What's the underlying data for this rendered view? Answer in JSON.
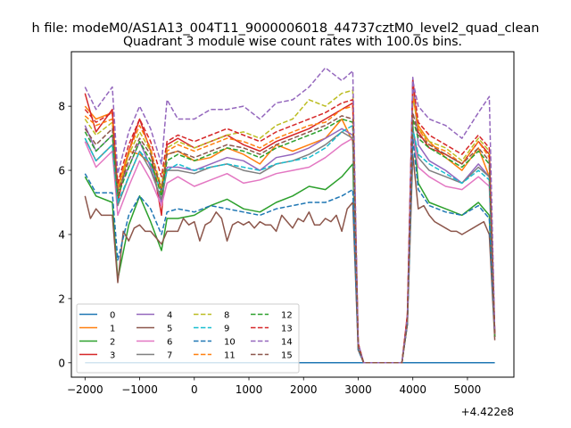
{
  "suptitle": "h file: modeM0/AS1A13_004T11_9000006018_44737cztM0_level2_quad_clean",
  "chart_data": {
    "type": "line",
    "title": "Quadrant 3 module wise count rates with 100.0s bins.",
    "xlabel": "",
    "ylabel": "",
    "x_offset_label": "+4.422e8",
    "xlim": [
      -2250,
      5850
    ],
    "ylim": [
      -0.45,
      9.7
    ],
    "xticks": [
      -2000,
      -1000,
      0,
      1000,
      2000,
      3000,
      4000,
      5000
    ],
    "xtick_labels": [
      "−2000",
      "−1000",
      "0",
      "1000",
      "2000",
      "3000",
      "4000",
      "5000"
    ],
    "yticks": [
      0,
      2,
      4,
      6,
      8
    ],
    "ytick_labels": [
      "0",
      "2",
      "4",
      "6",
      "8"
    ],
    "grid": false,
    "legend_position": "lower-left",
    "legend_columns": 4,
    "palette": [
      "#1f77b4",
      "#ff7f0e",
      "#2ca02c",
      "#d62728",
      "#9467bd",
      "#8c564b",
      "#e377c2",
      "#7f7f7f",
      "#bcbd22",
      "#17becf",
      "#1f77b4",
      "#ff7f0e",
      "#2ca02c",
      "#d62728",
      "#9467bd",
      "#8c564b"
    ],
    "series": [
      {
        "name": "0",
        "style": "solid",
        "x": [
          -2000,
          5500
        ],
        "y": [
          0,
          0
        ]
      },
      {
        "name": "1",
        "style": "solid",
        "x": [
          -2000,
          -1800,
          -1500,
          -1400,
          -1200,
          -1000,
          -800,
          -600,
          -500,
          -300,
          0,
          300,
          600,
          900,
          1200,
          1500,
          1800,
          2100,
          2400,
          2700,
          2900,
          3000,
          3100,
          3200,
          3800,
          3900,
          4000,
          4100,
          4300,
          4600,
          4900,
          5200,
          5400,
          5500
        ],
        "y": [
          8.0,
          7.6,
          7.8,
          5.5,
          6.6,
          6.5,
          6.2,
          5.5,
          6.5,
          6.6,
          6.3,
          6.4,
          6.7,
          6.5,
          6.2,
          6.8,
          6.6,
          6.8,
          7.0,
          7.6,
          6.9,
          0.5,
          0.0,
          0.0,
          0.0,
          1.2,
          8.3,
          7.4,
          6.9,
          6.4,
          6.0,
          6.7,
          5.8,
          0.8
        ]
      },
      {
        "name": "2",
        "style": "solid",
        "x": [
          -2000,
          -1800,
          -1500,
          -1400,
          -1200,
          -1000,
          -800,
          -600,
          -500,
          -300,
          0,
          300,
          600,
          900,
          1200,
          1500,
          1800,
          2100,
          2400,
          2700,
          2900,
          3000,
          3100,
          3200,
          3800,
          3900,
          4000,
          4100,
          4300,
          4600,
          4900,
          5200,
          5400,
          5500
        ],
        "y": [
          5.8,
          5.2,
          5.0,
          2.6,
          4.3,
          5.2,
          4.4,
          3.5,
          4.5,
          4.5,
          4.6,
          4.9,
          5.1,
          4.8,
          4.7,
          5.0,
          5.2,
          5.5,
          5.4,
          5.8,
          6.2,
          0.5,
          0.0,
          0.0,
          0.0,
          1.3,
          7.4,
          5.6,
          5.0,
          4.8,
          4.6,
          5.0,
          4.6,
          0.9
        ]
      },
      {
        "name": "3",
        "style": "solid",
        "x": [
          -2000,
          -1800,
          -1500,
          -1400,
          -1200,
          -1000,
          -800,
          -600,
          -500,
          -300,
          0,
          300,
          600,
          900,
          1200,
          1500,
          1800,
          2100,
          2400,
          2700,
          2900,
          3000,
          3100,
          3200,
          3800,
          3900,
          4000,
          4100,
          4300,
          4600,
          4900,
          5200,
          5400,
          5500
        ],
        "y": [
          8.4,
          7.2,
          7.9,
          5.0,
          6.6,
          7.6,
          6.6,
          4.6,
          6.8,
          7.0,
          6.7,
          6.9,
          7.1,
          6.8,
          6.6,
          6.9,
          7.1,
          7.3,
          7.6,
          7.9,
          8.1,
          0.6,
          0.0,
          0.0,
          0.0,
          1.5,
          8.8,
          7.2,
          6.7,
          6.5,
          6.2,
          6.9,
          6.5,
          0.9
        ]
      },
      {
        "name": "4",
        "style": "solid",
        "x": [
          -2000,
          -1800,
          -1500,
          -1400,
          -1200,
          -1000,
          -800,
          -600,
          -500,
          -300,
          0,
          300,
          600,
          900,
          1200,
          1500,
          1800,
          2100,
          2400,
          2700,
          2900,
          3000,
          3100,
          3200,
          3800,
          3900,
          4000,
          4100,
          4300,
          4600,
          4900,
          5200,
          5400,
          5500
        ],
        "y": [
          7.4,
          6.6,
          7.1,
          5.4,
          6.1,
          6.9,
          6.1,
          5.0,
          6.1,
          6.1,
          6.0,
          6.2,
          6.4,
          6.3,
          6.0,
          6.4,
          6.5,
          6.7,
          7.0,
          7.3,
          7.1,
          0.5,
          0.0,
          0.0,
          0.0,
          1.4,
          8.9,
          6.8,
          6.3,
          6.0,
          5.6,
          6.2,
          5.8,
          0.8
        ]
      },
      {
        "name": "5",
        "style": "solid",
        "x": [
          -2000,
          -1900,
          -1800,
          -1700,
          -1600,
          -1500,
          -1400,
          -1300,
          -1200,
          -1100,
          -1000,
          -900,
          -800,
          -700,
          -600,
          -500,
          -400,
          -300,
          -200,
          -100,
          0,
          100,
          200,
          300,
          400,
          500,
          600,
          700,
          800,
          900,
          1000,
          1100,
          1200,
          1300,
          1400,
          1500,
          1600,
          1700,
          1800,
          1900,
          2000,
          2100,
          2200,
          2300,
          2400,
          2500,
          2600,
          2700,
          2800,
          2900,
          3000,
          3100,
          3200,
          3800,
          3900,
          4000,
          4100,
          4200,
          4300,
          4400,
          4500,
          4600,
          4700,
          4800,
          4900,
          5000,
          5100,
          5200,
          5300,
          5400,
          5500
        ],
        "y": [
          5.2,
          4.5,
          4.8,
          4.6,
          4.6,
          4.6,
          2.5,
          4.1,
          3.8,
          4.2,
          4.3,
          4.1,
          4.1,
          3.9,
          3.7,
          4.1,
          4.1,
          4.1,
          4.5,
          4.3,
          4.4,
          3.8,
          4.3,
          4.4,
          4.7,
          4.5,
          3.8,
          4.3,
          4.4,
          4.3,
          4.4,
          4.2,
          4.4,
          4.3,
          4.3,
          4.1,
          4.6,
          4.4,
          4.2,
          4.5,
          4.4,
          4.7,
          4.3,
          4.3,
          4.5,
          4.4,
          4.6,
          4.1,
          4.8,
          5.0,
          0.4,
          0.0,
          0.0,
          0.0,
          1.2,
          6.5,
          4.8,
          4.9,
          4.6,
          4.4,
          4.3,
          4.2,
          4.1,
          4.1,
          4.0,
          4.1,
          4.2,
          4.3,
          4.4,
          4.0,
          0.7
        ]
      },
      {
        "name": "6",
        "style": "solid",
        "x": [
          -2000,
          -1800,
          -1500,
          -1400,
          -1200,
          -1000,
          -800,
          -600,
          -500,
          -300,
          0,
          300,
          600,
          900,
          1200,
          1500,
          1800,
          2100,
          2400,
          2700,
          2900,
          3000,
          3100,
          3200,
          3800,
          3900,
          4000,
          4100,
          4300,
          4600,
          4900,
          5200,
          5400,
          5500
        ],
        "y": [
          6.9,
          6.1,
          6.6,
          4.6,
          5.5,
          6.3,
          5.7,
          4.9,
          5.6,
          5.8,
          5.5,
          5.7,
          5.9,
          5.6,
          5.7,
          5.9,
          6.0,
          6.1,
          6.4,
          6.8,
          7.0,
          0.5,
          0.0,
          0.0,
          0.0,
          1.3,
          7.1,
          6.1,
          5.8,
          5.5,
          5.4,
          5.8,
          5.5,
          0.8
        ]
      },
      {
        "name": "7",
        "style": "solid",
        "x": [
          -2000,
          -1800,
          -1500,
          -1400,
          -1200,
          -1000,
          -800,
          -600,
          -500,
          -300,
          0,
          300,
          600,
          900,
          1200,
          1500,
          1800,
          2100,
          2400,
          2700,
          2900,
          3000,
          3100,
          3200,
          3800,
          3900,
          4000,
          4100,
          4300,
          4600,
          4900,
          5200,
          5400,
          5500
        ],
        "y": [
          7.0,
          6.3,
          6.8,
          4.9,
          5.8,
          6.6,
          6.0,
          5.1,
          6.0,
          6.0,
          5.9,
          6.1,
          6.2,
          6.0,
          5.9,
          6.2,
          6.3,
          6.5,
          6.8,
          7.2,
          7.0,
          0.5,
          0.0,
          0.0,
          0.0,
          1.3,
          7.3,
          6.4,
          6.0,
          5.8,
          5.6,
          6.1,
          5.8,
          0.8
        ]
      },
      {
        "name": "8",
        "style": "dashed",
        "x": [
          -2000,
          -1800,
          -1500,
          -1400,
          -1200,
          -1000,
          -800,
          -600,
          -500,
          -300,
          0,
          300,
          600,
          900,
          1200,
          1500,
          1800,
          2100,
          2400,
          2700,
          2900,
          3000,
          3100,
          3200,
          3800,
          3900,
          4000,
          4100,
          4300,
          4600,
          4900,
          5200,
          5400,
          5500
        ],
        "y": [
          7.6,
          7.1,
          7.5,
          5.3,
          6.5,
          7.2,
          6.6,
          5.5,
          6.7,
          6.9,
          6.7,
          6.9,
          7.1,
          7.2,
          7.0,
          7.4,
          7.6,
          8.2,
          8.0,
          8.4,
          8.5,
          0.6,
          0.0,
          0.0,
          0.0,
          1.4,
          8.3,
          7.3,
          6.9,
          6.7,
          6.3,
          7.0,
          6.6,
          0.8
        ]
      },
      {
        "name": "9",
        "style": "dashed",
        "x": [
          -2000,
          -1800,
          -1500,
          -1400,
          -1200,
          -1000,
          -800,
          -600,
          -500,
          -300,
          0,
          300,
          600,
          900,
          1200,
          1500,
          1800,
          2100,
          2400,
          2700,
          2900,
          3000,
          3100,
          3200,
          3800,
          3900,
          4000,
          4100,
          4300,
          4600,
          4900,
          5200,
          5400,
          5500
        ],
        "y": [
          7.0,
          6.3,
          6.8,
          5.0,
          5.8,
          6.6,
          6.2,
          5.3,
          6.0,
          6.2,
          6.0,
          6.1,
          6.2,
          6.1,
          6.0,
          6.2,
          6.3,
          6.4,
          6.7,
          7.2,
          7.4,
          0.5,
          0.0,
          0.0,
          0.0,
          1.3,
          7.3,
          6.5,
          6.2,
          5.9,
          5.6,
          6.0,
          5.7,
          0.8
        ]
      },
      {
        "name": "10",
        "style": "dashed",
        "x": [
          -2000,
          -1800,
          -1500,
          -1400,
          -1200,
          -1000,
          -800,
          -600,
          -500,
          -300,
          0,
          300,
          600,
          900,
          1200,
          1500,
          1800,
          2100,
          2400,
          2700,
          2900,
          3000,
          3100,
          3200,
          3800,
          3900,
          4000,
          4100,
          4300,
          4600,
          4900,
          5200,
          5400,
          5500
        ],
        "y": [
          5.9,
          5.3,
          5.3,
          3.2,
          4.6,
          5.2,
          4.8,
          4.0,
          4.7,
          4.8,
          4.7,
          4.9,
          4.8,
          4.7,
          4.6,
          4.8,
          4.9,
          5.0,
          5.0,
          5.2,
          5.4,
          0.4,
          0.0,
          0.0,
          0.0,
          1.2,
          7.0,
          5.4,
          4.9,
          4.7,
          4.6,
          4.9,
          4.5,
          0.8
        ]
      },
      {
        "name": "11",
        "style": "dashed",
        "x": [
          -2000,
          -1800,
          -1500,
          -1400,
          -1200,
          -1000,
          -800,
          -600,
          -500,
          -300,
          0,
          300,
          600,
          900,
          1200,
          1500,
          1800,
          2100,
          2400,
          2700,
          2900,
          3000,
          3100,
          3200,
          3800,
          3900,
          4000,
          4100,
          4300,
          4600,
          4900,
          5200,
          5400,
          5500
        ],
        "y": [
          7.7,
          7.4,
          7.6,
          5.4,
          6.6,
          7.4,
          6.7,
          5.3,
          6.6,
          6.8,
          6.6,
          6.8,
          7.0,
          6.9,
          6.7,
          7.0,
          7.2,
          7.4,
          7.5,
          7.9,
          8.0,
          0.5,
          0.0,
          0.0,
          0.0,
          1.4,
          8.4,
          7.3,
          6.8,
          6.6,
          6.2,
          6.9,
          6.4,
          0.8
        ]
      },
      {
        "name": "12",
        "style": "dashed",
        "x": [
          -2000,
          -1800,
          -1500,
          -1400,
          -1200,
          -1000,
          -800,
          -600,
          -500,
          -300,
          0,
          300,
          600,
          900,
          1200,
          1500,
          1800,
          2100,
          2400,
          2700,
          2900,
          3000,
          3100,
          3200,
          3800,
          3900,
          4000,
          4100,
          4300,
          4600,
          4900,
          5200,
          5400,
          5500
        ],
        "y": [
          7.2,
          6.6,
          7.1,
          5.2,
          6.1,
          6.9,
          6.3,
          5.2,
          6.3,
          6.5,
          6.3,
          6.5,
          6.7,
          6.6,
          6.4,
          6.7,
          6.9,
          7.1,
          7.3,
          7.6,
          7.5,
          0.5,
          0.0,
          0.0,
          0.0,
          1.3,
          7.6,
          7.0,
          6.7,
          6.4,
          6.1,
          6.6,
          6.2,
          0.8
        ]
      },
      {
        "name": "13",
        "style": "dashed",
        "x": [
          -2000,
          -1800,
          -1500,
          -1400,
          -1200,
          -1000,
          -800,
          -600,
          -500,
          -300,
          0,
          300,
          600,
          900,
          1200,
          1500,
          1800,
          2100,
          2400,
          2700,
          2900,
          3000,
          3100,
          3200,
          3800,
          3900,
          4000,
          4100,
          4300,
          4600,
          4900,
          5200,
          5400,
          5500
        ],
        "y": [
          7.9,
          7.5,
          7.8,
          5.6,
          6.8,
          7.6,
          6.9,
          5.8,
          6.9,
          7.1,
          6.9,
          7.1,
          7.3,
          7.1,
          6.9,
          7.2,
          7.4,
          7.6,
          7.8,
          8.1,
          8.2,
          0.6,
          0.0,
          0.0,
          0.0,
          1.5,
          8.8,
          7.5,
          7.1,
          6.8,
          6.5,
          7.1,
          6.7,
          0.9
        ]
      },
      {
        "name": "14",
        "style": "dashed",
        "x": [
          -2000,
          -1800,
          -1500,
          -1400,
          -1200,
          -1000,
          -800,
          -600,
          -500,
          -300,
          0,
          300,
          600,
          900,
          1200,
          1500,
          1800,
          2100,
          2400,
          2700,
          2900,
          3000,
          3100,
          3200,
          3800,
          3900,
          4000,
          4100,
          4300,
          4600,
          4900,
          5200,
          5400,
          5500
        ],
        "y": [
          8.6,
          7.9,
          8.6,
          5.9,
          7.2,
          8.0,
          7.3,
          6.2,
          8.2,
          7.6,
          7.6,
          7.9,
          7.9,
          8.0,
          7.6,
          8.1,
          8.2,
          8.6,
          9.2,
          8.8,
          9.1,
          0.6,
          0.0,
          0.0,
          0.0,
          1.4,
          8.8,
          8.0,
          7.6,
          7.4,
          7.0,
          7.8,
          8.3,
          0.9
        ]
      },
      {
        "name": "15",
        "style": "dashed",
        "x": [
          -2000,
          -1800,
          -1500,
          -1400,
          -1200,
          -1000,
          -800,
          -600,
          -500,
          -300,
          0,
          300,
          600,
          900,
          1200,
          1500,
          1800,
          2100,
          2400,
          2700,
          2900,
          3000,
          3100,
          3200,
          3800,
          3900,
          4000,
          4100,
          4300,
          4600,
          4900,
          5200,
          5400,
          5500
        ],
        "y": [
          7.3,
          6.8,
          7.3,
          5.3,
          6.3,
          7.0,
          6.5,
          5.4,
          6.5,
          6.6,
          6.4,
          6.6,
          6.8,
          6.7,
          6.5,
          6.8,
          7.0,
          7.2,
          7.4,
          7.7,
          7.6,
          0.5,
          0.0,
          0.0,
          0.0,
          1.3,
          7.8,
          7.1,
          6.8,
          6.5,
          6.2,
          6.7,
          6.3,
          0.8
        ]
      }
    ]
  }
}
